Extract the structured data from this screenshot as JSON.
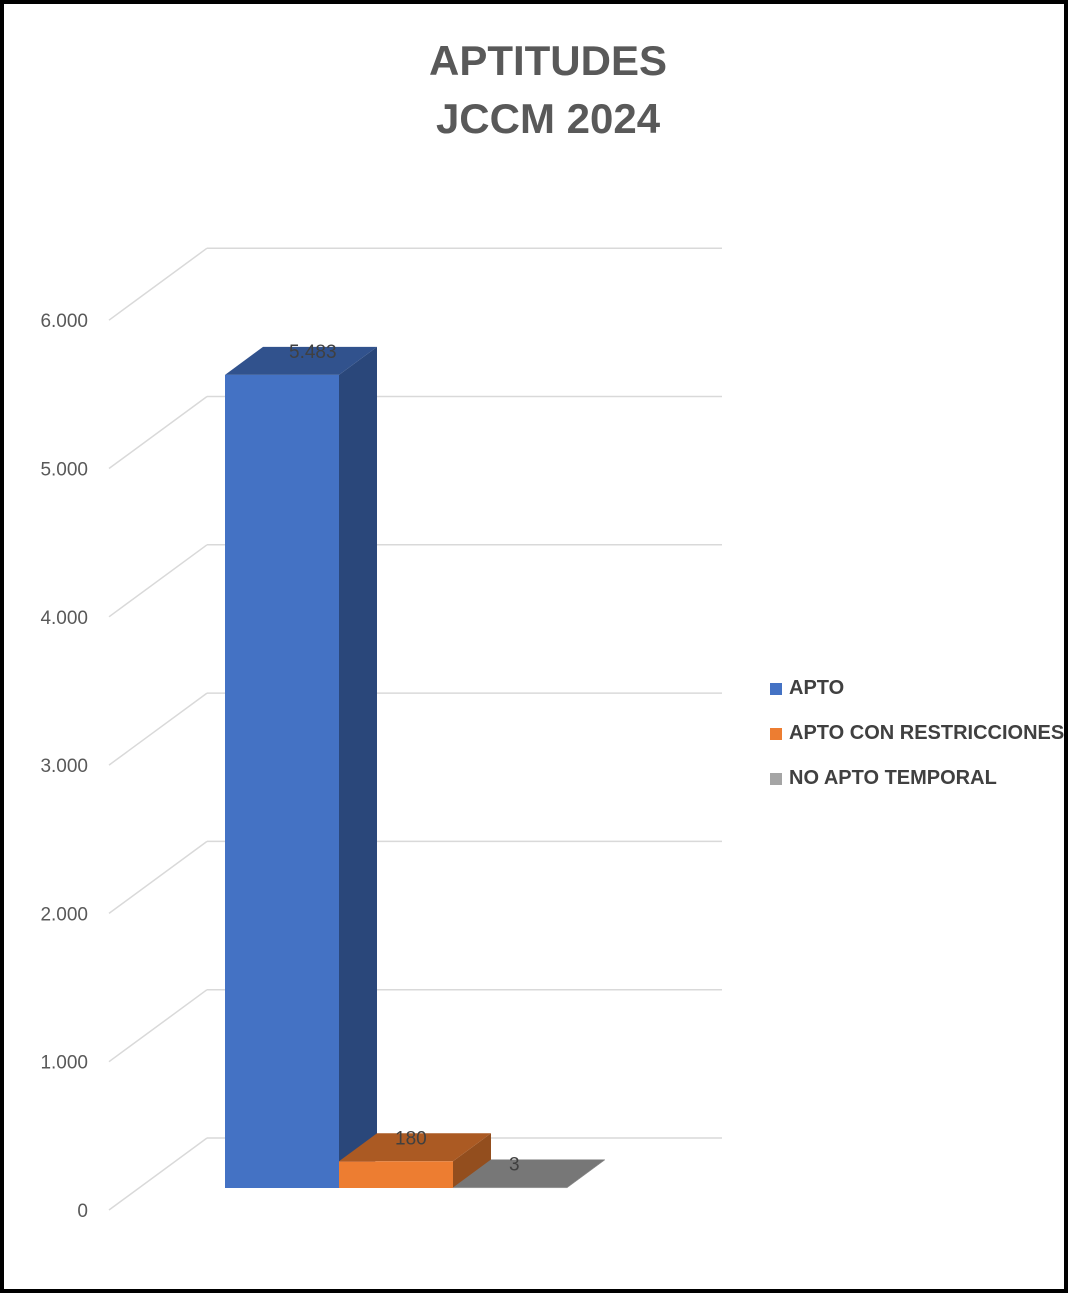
{
  "chart_data": {
    "type": "bar",
    "title_lines": [
      "APTITUDES",
      "JCCM 2024"
    ],
    "categories": [
      "APTO",
      "APTO CON RESTRICCIONES",
      "NO APTO TEMPORAL"
    ],
    "values": [
      5483,
      180,
      3
    ],
    "value_labels": [
      "5.483",
      "180",
      "3"
    ],
    "colors": [
      "#4472C4",
      "#ED7D31",
      "#A5A5A5"
    ],
    "ylim": [
      0,
      6000
    ],
    "yticks": [
      0,
      1000,
      2000,
      3000,
      4000,
      5000,
      6000
    ],
    "ytick_labels": [
      "0",
      "1.000",
      "2.000",
      "3.000",
      "4.000",
      "5.000",
      "6.000"
    ],
    "grid": true,
    "legend_position": "right",
    "style": "3d-column"
  }
}
